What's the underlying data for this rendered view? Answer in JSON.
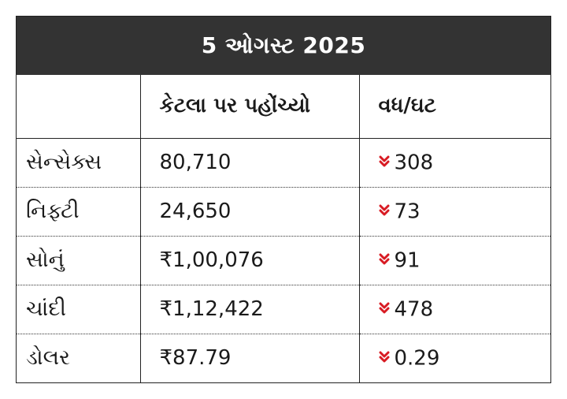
{
  "title": "5 ઓગસ્ટ 2025",
  "headers": [
    "",
    "કેટલા પર પહોંચ્યો",
    "વધ/ઘટ"
  ],
  "trend_color": "#d81b23",
  "trend_icon": "double-chevron-down-icon",
  "rows": [
    {
      "name": "સેન્સેક્સ",
      "value": "80,710",
      "change": "308"
    },
    {
      "name": "નિફ્ટી",
      "value": "24,650",
      "change": "73"
    },
    {
      "name": "સોનું",
      "value": "₹1,00,076",
      "change": "91"
    },
    {
      "name": "ચાંદી",
      "value": "₹1,12,422",
      "change": "478"
    },
    {
      "name": "ડોલર",
      "value": "₹87.79",
      "change": "0.29"
    }
  ]
}
